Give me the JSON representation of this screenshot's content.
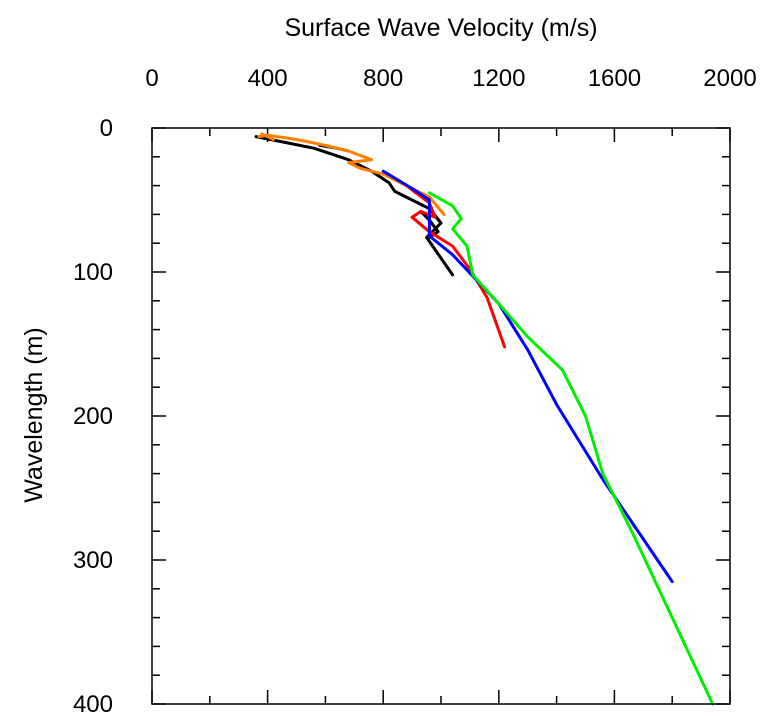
{
  "chart_data": {
    "type": "line",
    "title": "",
    "xlabel": "Surface Wave Velocity (m/s)",
    "ylabel": "Wavelength (m)",
    "xlim": [
      0,
      2000
    ],
    "ylim": [
      0,
      400
    ],
    "y_inverted": true,
    "x_axis_position": "top",
    "x_ticks": [
      0,
      400,
      800,
      1200,
      1600,
      2000
    ],
    "y_ticks": [
      0,
      100,
      200,
      300,
      400
    ],
    "x_minor_step": 200,
    "y_minor_step": 20,
    "grid": false,
    "legend": "none",
    "series": [
      {
        "color": "#000000",
        "points": [
          [
            360,
            6
          ],
          [
            460,
            10
          ],
          [
            560,
            14
          ],
          [
            680,
            22
          ],
          [
            760,
            30
          ],
          [
            820,
            38
          ],
          [
            840,
            44
          ],
          [
            900,
            50
          ],
          [
            960,
            56
          ],
          [
            1000,
            66
          ],
          [
            950,
            76
          ],
          [
            1040,
            102
          ]
        ]
      },
      {
        "color": "#000000",
        "points": [
          [
            580,
            12
          ],
          [
            640,
            14
          ],
          [
            680,
            16
          ]
        ]
      },
      {
        "color": "#000000",
        "points": [
          [
            930,
            58
          ],
          [
            960,
            64
          ],
          [
            990,
            72
          ],
          [
            960,
            76
          ]
        ]
      },
      {
        "color": "#ff0000",
        "points": [
          [
            880,
            40
          ],
          [
            960,
            52
          ],
          [
            980,
            62
          ],
          [
            930,
            58
          ],
          [
            900,
            62
          ],
          [
            960,
            72
          ],
          [
            1040,
            82
          ],
          [
            1100,
            98
          ],
          [
            1160,
            118
          ],
          [
            1220,
            152
          ]
        ]
      },
      {
        "color": "#ff7f00",
        "points": [
          [
            370,
            6
          ],
          [
            400,
            5
          ],
          [
            500,
            8
          ],
          [
            600,
            12
          ],
          [
            680,
            16
          ],
          [
            760,
            22
          ],
          [
            680,
            24
          ],
          [
            720,
            28
          ],
          [
            800,
            32
          ],
          [
            880,
            40
          ],
          [
            960,
            48
          ],
          [
            1010,
            60
          ]
        ]
      },
      {
        "color": "#ff7f00",
        "points": [
          [
            380,
            4
          ],
          [
            420,
            8
          ],
          [
            400,
            6
          ]
        ]
      },
      {
        "color": "#0000ff",
        "points": [
          [
            800,
            30
          ],
          [
            900,
            42
          ],
          [
            960,
            50
          ],
          [
            960,
            75
          ],
          [
            1040,
            88
          ],
          [
            1120,
            105
          ],
          [
            1200,
            122
          ],
          [
            1300,
            154
          ],
          [
            1400,
            192
          ],
          [
            1560,
            244
          ],
          [
            1800,
            315
          ]
        ]
      },
      {
        "color": "#00ee00",
        "points": [
          [
            960,
            45
          ],
          [
            1040,
            54
          ],
          [
            1070,
            63
          ],
          [
            1040,
            70
          ],
          [
            1090,
            82
          ],
          [
            1110,
            102
          ],
          [
            1200,
            122
          ],
          [
            1300,
            145
          ],
          [
            1420,
            168
          ],
          [
            1500,
            200
          ],
          [
            1560,
            240
          ],
          [
            1660,
            280
          ],
          [
            1800,
            340
          ],
          [
            1940,
            400
          ]
        ]
      }
    ]
  }
}
